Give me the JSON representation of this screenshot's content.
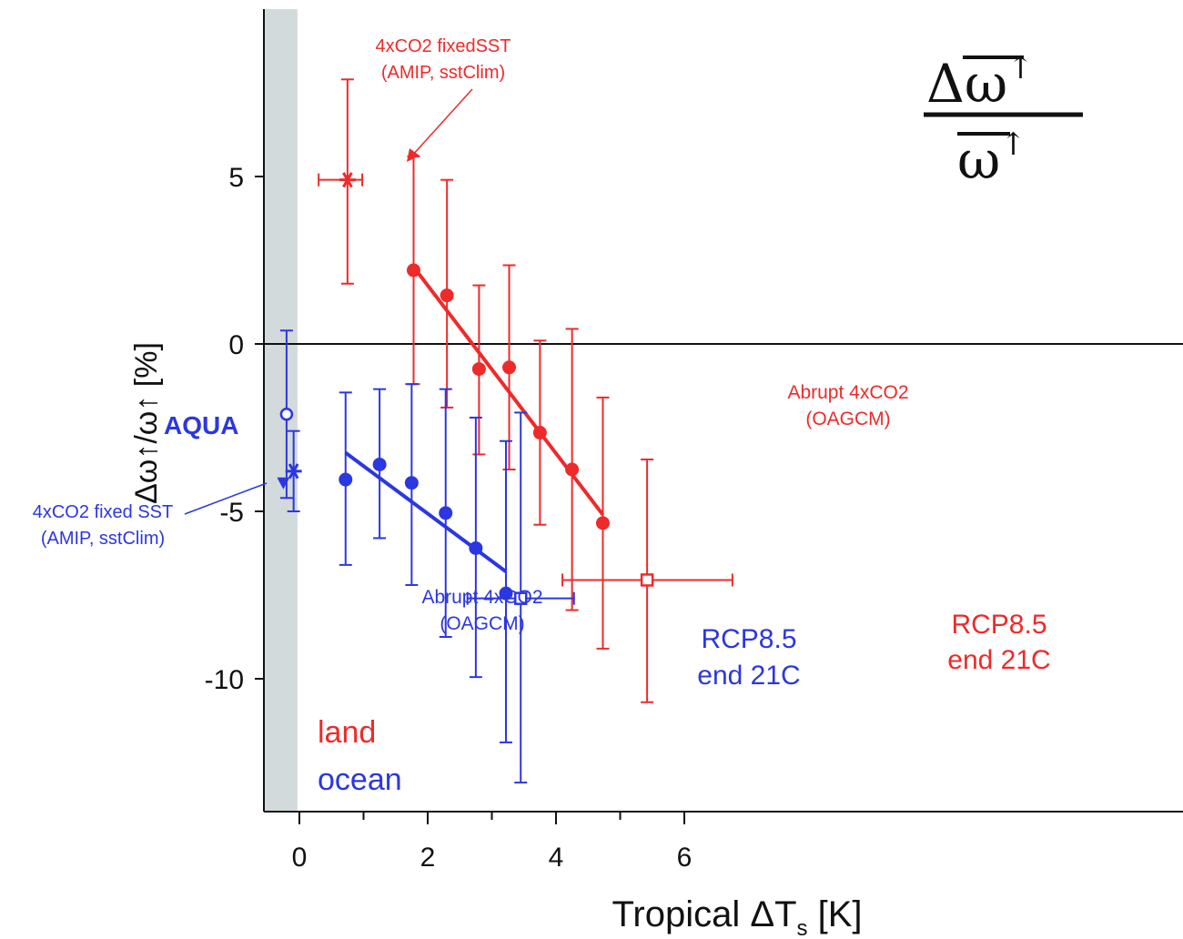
{
  "chart_data": {
    "type": "scatter",
    "title": "",
    "xlabel": "Tropical ΔT",
    "xlabel_subscript": "s",
    "xlabel_unit": " [K]",
    "ylabel": "Δω↑/ω↑ [%]",
    "xlim": [
      -0.3,
      6.9
    ],
    "ylim": [
      -14,
      10
    ],
    "x_ticks": [
      0,
      2,
      4,
      6
    ],
    "x_tick_labels": [
      "0",
      "2",
      "4",
      "6"
    ],
    "x_minor_ticks": [
      1,
      3,
      5
    ],
    "y_ticks": [
      5,
      0,
      -5,
      -10
    ],
    "y_tick_labels": [
      "5",
      "0",
      "-5",
      "-10"
    ],
    "grid": false,
    "zero_line": 0,
    "shaded_band_x": [
      -0.3,
      -0.03
    ],
    "formula": {
      "numerator": "Δω",
      "denominator": "ω",
      "arrow": "↑"
    },
    "colors": {
      "land": "#ee2a2a",
      "ocean": "#2b37e0",
      "band": "#d3dadb",
      "axis": "#111111"
    },
    "series": [
      {
        "name": "land",
        "group": "abrupt",
        "color": "#ee2a2a",
        "points": [
          {
            "x": 1.78,
            "y": 2.2,
            "ylo": -1.2,
            "yhi": 5.6
          },
          {
            "x": 2.3,
            "y": 1.45,
            "ylo": -1.9,
            "yhi": 4.9
          },
          {
            "x": 2.8,
            "y": -0.75,
            "ylo": -3.3,
            "yhi": 1.75
          },
          {
            "x": 3.27,
            "y": -0.7,
            "ylo": -3.75,
            "yhi": 2.35
          },
          {
            "x": 3.75,
            "y": -2.65,
            "ylo": -5.4,
            "yhi": 0.1
          },
          {
            "x": 4.25,
            "y": -3.75,
            "ylo": -7.95,
            "yhi": 0.45
          },
          {
            "x": 4.73,
            "y": -5.35,
            "ylo": -9.1,
            "yhi": -1.6
          }
        ],
        "fit": {
          "x": [
            1.78,
            4.73
          ],
          "y": [
            2.3,
            -5.1
          ]
        }
      },
      {
        "name": "ocean",
        "group": "abrupt",
        "color": "#2b37e0",
        "points": [
          {
            "x": 0.72,
            "y": -4.05,
            "ylo": -6.6,
            "yhi": -1.45
          },
          {
            "x": 1.25,
            "y": -3.6,
            "ylo": -5.8,
            "yhi": -1.35
          },
          {
            "x": 1.75,
            "y": -4.15,
            "ylo": -7.2,
            "yhi": -1.2
          },
          {
            "x": 2.28,
            "y": -5.05,
            "ylo": -8.75,
            "yhi": -1.35
          },
          {
            "x": 2.75,
            "y": -6.1,
            "ylo": -9.95,
            "yhi": -2.2
          },
          {
            "x": 3.22,
            "y": -7.45,
            "ylo": -11.9,
            "yhi": -2.9
          }
        ],
        "fit": {
          "x": [
            0.72,
            3.22
          ],
          "y": [
            -3.25,
            -6.8
          ]
        }
      }
    ],
    "special_points": [
      {
        "label": "4xCO2 fixedSST (AMIP, sstClim) land",
        "marker": "asterisk",
        "color": "#ee2a2a",
        "x": 0.75,
        "y": 4.9,
        "ylo": 1.8,
        "yhi": 7.9,
        "xlo": 0.3,
        "xhi": 0.98
      },
      {
        "label": "RCP8.5 end 21C land",
        "marker": "open-square",
        "color": "#ee2a2a",
        "x": 5.42,
        "y": -7.05,
        "ylo": -10.7,
        "yhi": -3.45,
        "xlo": 4.1,
        "xhi": 6.75
      },
      {
        "label": "RCP8.5 end 21C ocean",
        "marker": "open-square",
        "color": "#2b37e0",
        "x": 3.45,
        "y": -7.6,
        "ylo": -13.1,
        "yhi": -2.05,
        "xlo": 2.62,
        "xhi": 4.28
      },
      {
        "label": "AQUA",
        "marker": "open-circle",
        "color": "#2b37e0",
        "x": -0.2,
        "y": -2.1,
        "ylo": -4.6,
        "yhi": 0.4
      },
      {
        "label": "4xCO2 fixed SST (AMIP, sstClim) ocean",
        "marker": "asterisk",
        "color": "#2b37e0",
        "x": -0.09,
        "y": -3.8,
        "ylo": -5.0,
        "yhi": -2.6
      },
      {
        "label": "4xCO2 fixed SST ocean triangle",
        "marker": "filled-triangle",
        "color": "#2b37e0",
        "x": -0.25,
        "y": -4.15
      }
    ],
    "annotations": {
      "land_fixed_sst": [
        "4xCO2 fixedSST",
        "(AMIP, sstClim)"
      ],
      "ocean_fixed_sst": [
        "4xCO2 fixed SST",
        "(AMIP, sstClim)"
      ],
      "aqua": "AQUA",
      "land_abrupt": [
        "Abrupt 4xCO2",
        "(OAGCM)"
      ],
      "ocean_abrupt": [
        "Abrupt 4xCO2",
        "(OAGCM)"
      ],
      "land_rcp": [
        "RCP8.5",
        "end 21C"
      ],
      "ocean_rcp": [
        "RCP8.5",
        "end 21C"
      ]
    },
    "legend": {
      "placement": "bottom-left",
      "entries": [
        {
          "label": "land",
          "color": "#ee2a2a"
        },
        {
          "label": "ocean",
          "color": "#2b37e0"
        }
      ]
    }
  }
}
